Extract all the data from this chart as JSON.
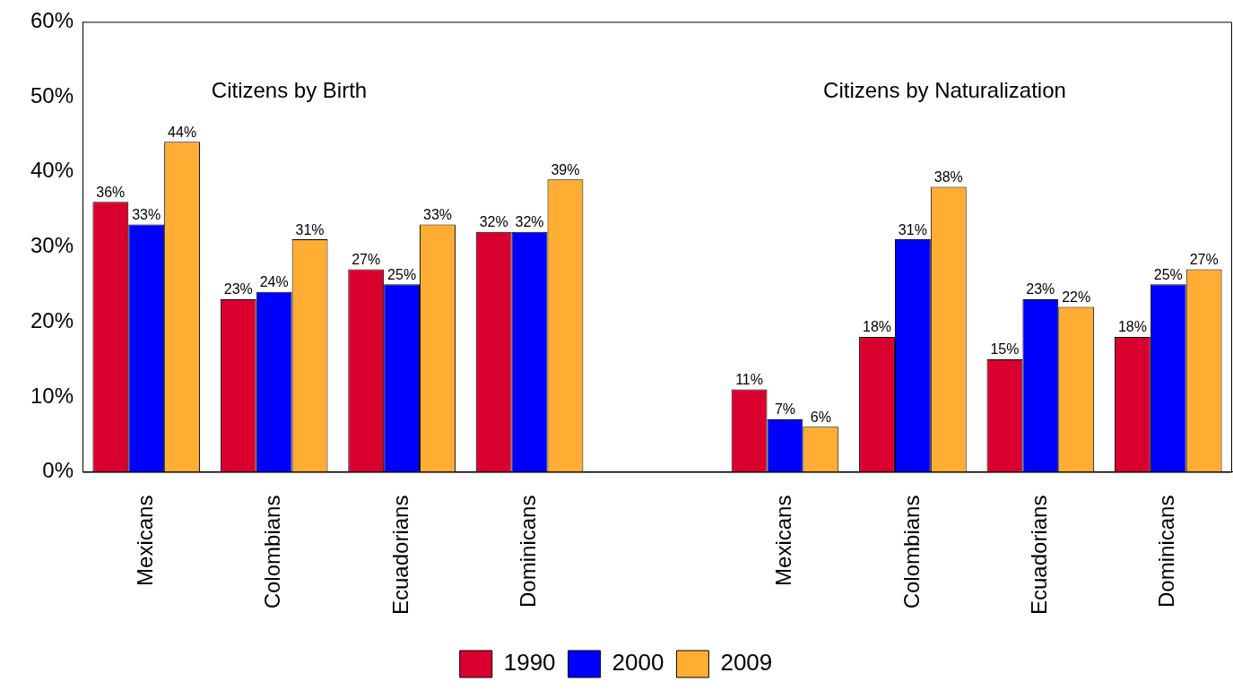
{
  "chart_data": {
    "type": "bar",
    "categories": [
      "Mexicans",
      "Colombians",
      "Ecuadorians",
      "Dominicans",
      null,
      "Mexicans",
      "Colombians",
      "Ecuadorians",
      "Dominicans"
    ],
    "series": [
      {
        "name": "1990",
        "color": "#d9002f",
        "values": [
          36,
          23,
          27,
          32,
          null,
          11,
          18,
          15,
          18
        ],
        "value_labels": [
          "36%",
          "23%",
          "27%",
          "32%",
          null,
          "11%",
          "18%",
          "15%",
          "18%"
        ]
      },
      {
        "name": "2000",
        "color": "#0000ff",
        "values": [
          33,
          24,
          25,
          32,
          null,
          7,
          31,
          23,
          25
        ],
        "value_labels": [
          "33%",
          "24%",
          "25%",
          "32%",
          null,
          "7%",
          "31%",
          "23%",
          "25%"
        ]
      },
      {
        "name": "2009",
        "color": "#ffad33",
        "values": [
          44,
          31,
          33,
          39,
          null,
          6,
          38,
          22,
          27
        ],
        "value_labels": [
          "44%",
          "31%",
          "33%",
          "39%",
          null,
          "6%",
          "38%",
          "22%",
          "27%"
        ]
      }
    ],
    "ylim": [
      0,
      60
    ],
    "yticks": [
      {
        "value": 0,
        "label": "0%"
      },
      {
        "value": 10,
        "label": "10%"
      },
      {
        "value": 20,
        "label": "20%"
      },
      {
        "value": 30,
        "label": "30%"
      },
      {
        "value": 40,
        "label": "40%"
      },
      {
        "value": 50,
        "label": "50%"
      },
      {
        "value": 60,
        "label": "60%"
      }
    ],
    "annotations": [
      "Citizens by Birth",
      "Citizens by Naturalization"
    ],
    "grid": false,
    "legend": "bottom"
  }
}
